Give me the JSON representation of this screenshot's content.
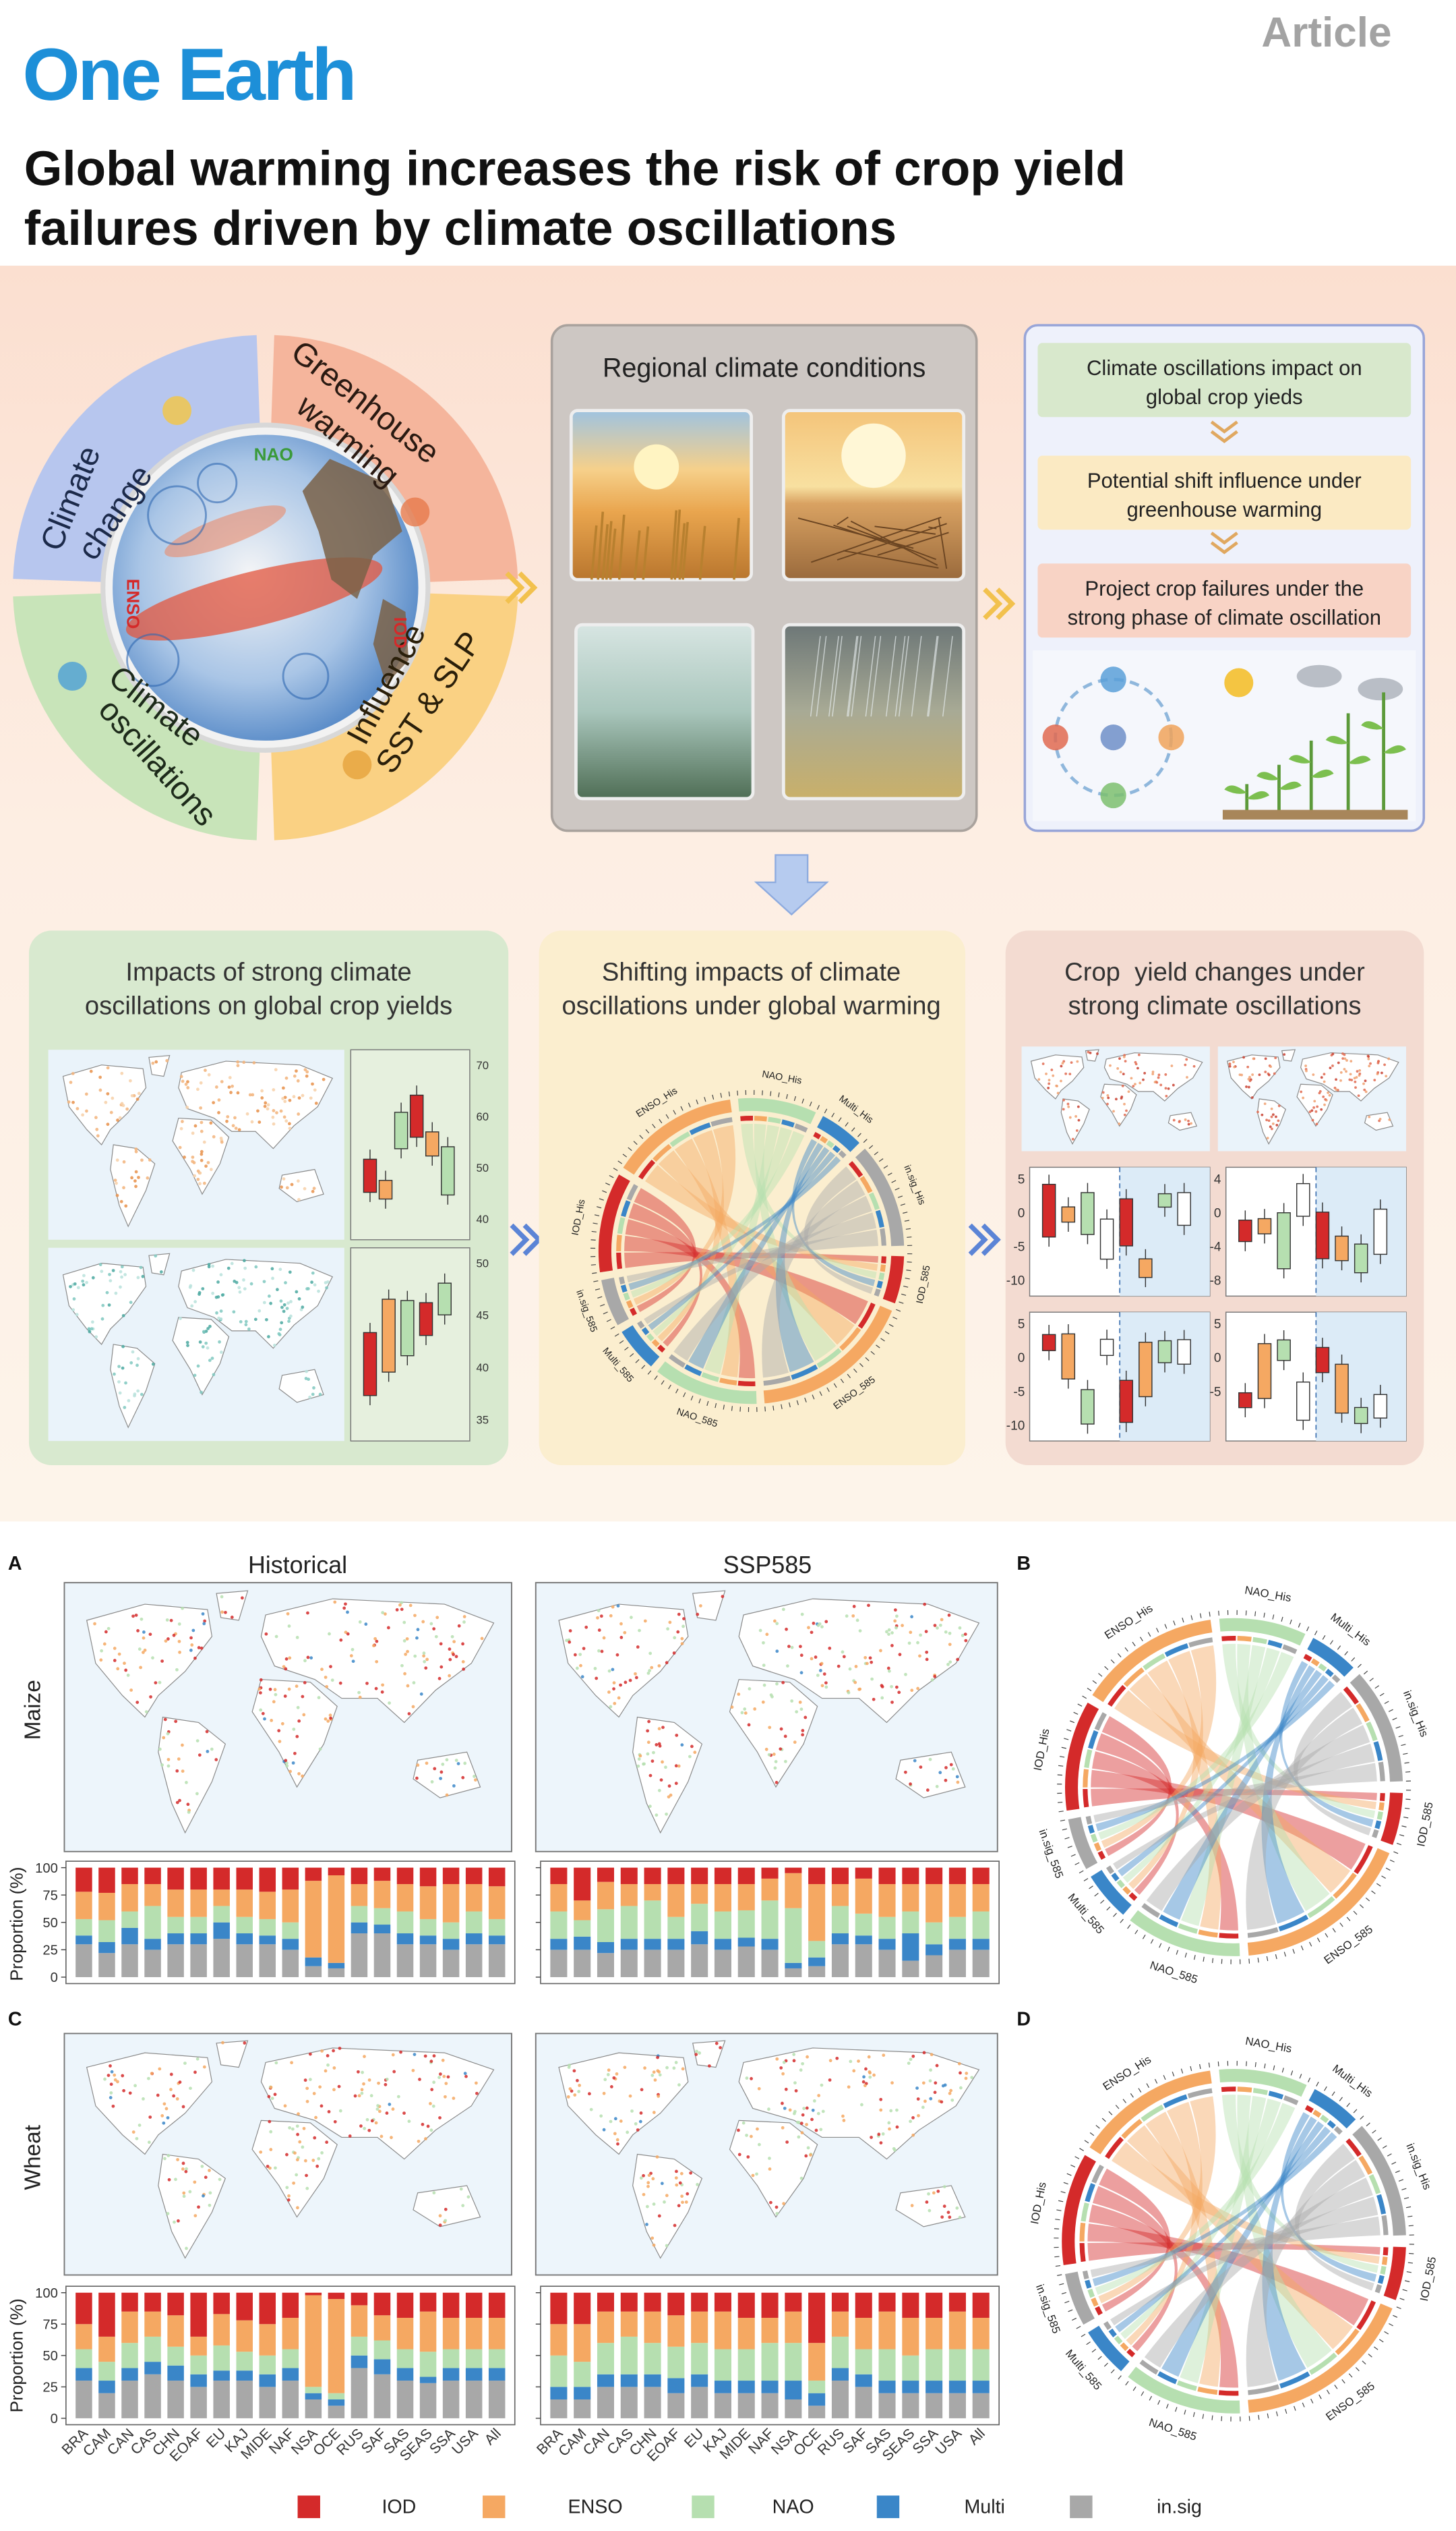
{
  "header": {
    "journal": "One Earth",
    "section": "Article",
    "title": [
      "Global warming increases the risk of crop yield",
      "failures driven by climate oscillations"
    ]
  },
  "graphical_abstract": {
    "drivers": {
      "climate_change": [
        "Climate",
        "change"
      ],
      "greenhouse_warming": [
        "Greenhouse",
        "warming"
      ],
      "climate_oscillations": [
        "Climate",
        "oscillations"
      ],
      "influence": [
        "Influence",
        "SST & SLP"
      ]
    },
    "globe_labels": {
      "nao": "NAO",
      "enso": "ENSO",
      "iod": "IOD"
    },
    "regional_title": "Regional climate conditions",
    "steps": [
      [
        "Climate oscillations impact on",
        "global crop yieds"
      ],
      [
        "Potential shift influence under",
        "greenhouse warming"
      ],
      [
        "Project crop failures under the",
        "strong phase of climate oscillation"
      ]
    ],
    "panels": [
      {
        "title": [
          "Impacts of strong climate",
          "oscillations on global crop yields"
        ],
        "tick_sets": [
          [
            70,
            60,
            50,
            40
          ],
          [
            50,
            45,
            40,
            35
          ]
        ]
      },
      {
        "title": [
          "Shifting impacts of climate",
          "oscillations under global warming"
        ]
      },
      {
        "title": [
          "Crop  yield changes under",
          "strong climate oscillations"
        ],
        "tick_sets": [
          [
            5,
            0,
            -5,
            -10
          ],
          [
            4,
            0,
            -4,
            -8
          ],
          [
            5,
            0,
            -5,
            -10
          ],
          [
            5,
            0,
            -5
          ]
        ]
      }
    ]
  },
  "chord_labels": [
    "IOD_His",
    "ENSO_His",
    "NAO_His",
    "Multi_His",
    "in.sig_His",
    "IOD_585",
    "ENSO_585",
    "NAO_585",
    "Multi_585",
    "in.sig_585"
  ],
  "figure": {
    "panel_labels": [
      "A",
      "B",
      "C",
      "D"
    ],
    "columns": [
      "Historical",
      "SSP585"
    ],
    "crops": [
      "Maize",
      "Wheat"
    ],
    "y_label": "Proportion (%)",
    "categories": [
      "BRA",
      "CAM",
      "CAN",
      "CAS",
      "CHN",
      "EOAF",
      "EU",
      "KAJ",
      "MIDE",
      "NAF",
      "NSA",
      "OCE",
      "RUS",
      "SAF",
      "SAS",
      "SEAS",
      "SSA",
      "USA",
      "All"
    ],
    "legend": [
      {
        "name": "IOD",
        "color": "#d42a2a"
      },
      {
        "name": "ENSO",
        "color": "#f5a862"
      },
      {
        "name": "NAO",
        "color": "#b6dfb0"
      },
      {
        "name": "Multi",
        "color": "#3a86c8"
      },
      {
        "name": "in.sig",
        "color": "#a8a8a8"
      }
    ],
    "charts": [
      {
        "type": "bar",
        "stacked": true,
        "ylim": [
          0,
          100
        ],
        "yticks": [
          0,
          25,
          50,
          75,
          100
        ],
        "series": [
          {
            "values": [
              22,
              23,
              15,
              15,
              20,
              20,
              20,
              20,
              22,
              20,
              12,
              7,
              15,
              12,
              15,
              17,
              15,
              15,
              17
            ]
          },
          {
            "values": [
              25,
              25,
              25,
              20,
              25,
              25,
              15,
              25,
              25,
              30,
              70,
              80,
              20,
              25,
              25,
              30,
              35,
              25,
              30
            ]
          },
          {
            "values": [
              15,
              20,
              15,
              30,
              15,
              15,
              15,
              15,
              15,
              15,
              0,
              0,
              15,
              15,
              20,
              15,
              15,
              20,
              15
            ]
          },
          {
            "values": [
              8,
              10,
              15,
              10,
              10,
              10,
              15,
              10,
              8,
              10,
              8,
              5,
              10,
              8,
              10,
              8,
              10,
              10,
              8
            ]
          },
          {
            "values": [
              30,
              22,
              30,
              25,
              30,
              30,
              35,
              30,
              30,
              25,
              10,
              8,
              40,
              40,
              30,
              30,
              25,
              30,
              30
            ]
          }
        ]
      },
      {
        "type": "bar",
        "stacked": true,
        "ylim": [
          0,
          100
        ],
        "yticks": [
          0,
          25,
          50,
          75,
          100
        ],
        "series": [
          {
            "values": [
              15,
              30,
              13,
              15,
              15,
              15,
              15,
              15,
              15,
              10,
              5,
              15,
              15,
              10,
              15,
              15,
              15,
              15,
              15
            ]
          },
          {
            "values": [
              25,
              18,
              25,
              20,
              15,
              30,
              18,
              25,
              24,
              20,
              32,
              52,
              20,
              32,
              30,
              25,
              35,
              30,
              25
            ]
          },
          {
            "values": [
              25,
              15,
              30,
              30,
              35,
              20,
              25,
              25,
              25,
              35,
              50,
              15,
              25,
              20,
              20,
              20,
              20,
              20,
              25
            ]
          },
          {
            "values": [
              10,
              12,
              10,
              10,
              10,
              10,
              12,
              10,
              8,
              10,
              5,
              8,
              10,
              8,
              10,
              25,
              10,
              10,
              10
            ]
          },
          {
            "values": [
              25,
              25,
              22,
              25,
              25,
              25,
              30,
              25,
              28,
              25,
              8,
              10,
              30,
              30,
              25,
              15,
              20,
              25,
              25
            ]
          }
        ]
      },
      {
        "type": "bar",
        "stacked": true,
        "ylim": [
          0,
          100
        ],
        "yticks": [
          0,
          25,
          50,
          75,
          100
        ],
        "series": [
          {
            "values": [
              25,
              35,
              15,
              15,
              18,
              35,
              17,
              22,
              25,
              20,
              2,
              5,
              10,
              18,
              20,
              15,
              20,
              20,
              20
            ]
          },
          {
            "values": [
              20,
              20,
              25,
              20,
              25,
              15,
              25,
              25,
              25,
              25,
              73,
              75,
              25,
              20,
              25,
              32,
              25,
              25,
              25
            ]
          },
          {
            "values": [
              15,
              15,
              20,
              20,
              15,
              15,
              20,
              15,
              15,
              15,
              5,
              5,
              15,
              15,
              15,
              20,
              15,
              15,
              15
            ]
          },
          {
            "values": [
              10,
              10,
              10,
              10,
              12,
              10,
              8,
              8,
              10,
              10,
              5,
              5,
              10,
              12,
              10,
              5,
              10,
              10,
              10
            ]
          },
          {
            "values": [
              30,
              20,
              30,
              35,
              30,
              25,
              30,
              30,
              25,
              30,
              15,
              10,
              40,
              35,
              30,
              28,
              30,
              30,
              30
            ]
          }
        ]
      },
      {
        "type": "bar",
        "stacked": true,
        "ylim": [
          0,
          100
        ],
        "yticks": [
          0,
          25,
          50,
          75,
          100
        ],
        "series": [
          {
            "values": [
              25,
              25,
              15,
              15,
              15,
              18,
              15,
              15,
              20,
              20,
              15,
              40,
              15,
              20,
              15,
              20,
              20,
              15,
              20
            ]
          },
          {
            "values": [
              25,
              30,
              25,
              20,
              25,
              25,
              25,
              30,
              25,
              20,
              25,
              30,
              20,
              25,
              30,
              30,
              25,
              30,
              25
            ]
          },
          {
            "values": [
              25,
              20,
              25,
              30,
              25,
              25,
              25,
              25,
              25,
              30,
              30,
              10,
              25,
              20,
              25,
              20,
              25,
              25,
              25
            ]
          },
          {
            "values": [
              10,
              10,
              10,
              10,
              10,
              12,
              10,
              10,
              10,
              10,
              15,
              10,
              10,
              10,
              10,
              10,
              10,
              10,
              10
            ]
          },
          {
            "values": [
              15,
              15,
              25,
              25,
              25,
              20,
              25,
              20,
              20,
              20,
              15,
              10,
              30,
              25,
              20,
              20,
              20,
              20,
              20
            ]
          }
        ]
      }
    ]
  }
}
